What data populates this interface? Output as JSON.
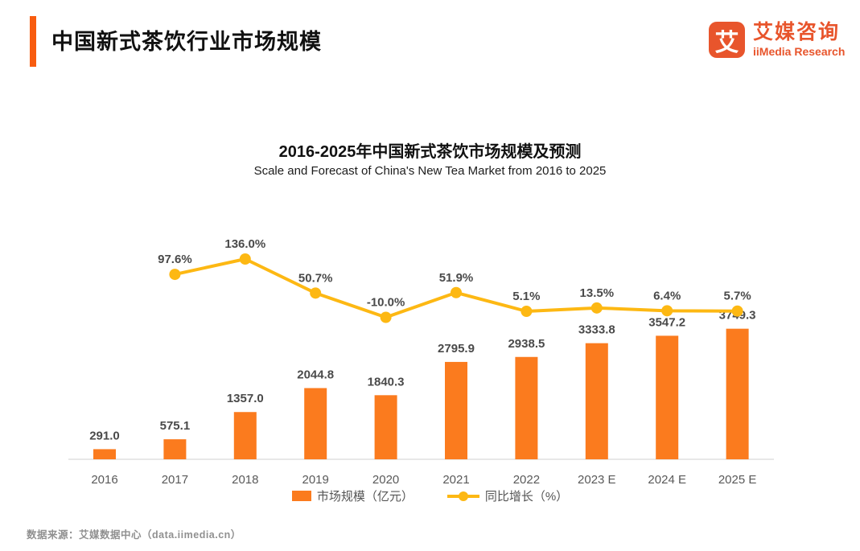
{
  "header": {
    "title": "中国新式茶饮行业市场规模"
  },
  "logo": {
    "glyph": "艾",
    "name_cn": "艾媒咨询",
    "name_en": "iiMedia Research"
  },
  "chart": {
    "title": "2016-2025年中国新式茶饮市场规模及预测",
    "subtitle": "Scale and Forecast of China's New Tea Market from 2016 to 2025"
  },
  "chart_data": {
    "type": "bar+line combo",
    "categories": [
      "2016",
      "2017",
      "2018",
      "2019",
      "2020",
      "2021",
      "2022",
      "2023 E",
      "2024 E",
      "2025 E"
    ],
    "series": [
      {
        "name": "市场规模（亿元）",
        "type": "bar",
        "color": "#FB7B1E",
        "values": [
          291.0,
          575.1,
          1357.0,
          2044.8,
          1840.3,
          2795.9,
          2938.5,
          3333.8,
          3547.2,
          3749.3
        ]
      },
      {
        "name": "同比增长（%）",
        "type": "line",
        "color": "#FDB813",
        "values": [
          null,
          97.6,
          136.0,
          50.7,
          -10.0,
          51.9,
          5.1,
          13.5,
          6.4,
          5.7
        ]
      }
    ],
    "bar_labels": [
      "291.0",
      "575.1",
      "1357.0",
      "2044.8",
      "1840.3",
      "2795.9",
      "2938.5",
      "3333.8",
      "3547.2",
      "3749.3"
    ],
    "growth_labels": [
      null,
      "97.6%",
      "136.0%",
      "50.7%",
      "-10.0%",
      "51.9%",
      "5.1%",
      "13.5%",
      "6.4%",
      "5.7%"
    ],
    "title": "2016-2025年中国新式茶饮市场规模及预测",
    "xlabel": "",
    "ylabel": "",
    "y_axis_visible": false,
    "grid": false,
    "legend_position": "bottom",
    "bar_axis_range": [
      0,
      4000
    ],
    "line_axis_range_pct": [
      -10,
      150
    ]
  },
  "legend": {
    "items": [
      {
        "label": "市场规模（亿元）",
        "marker": "bar"
      },
      {
        "label": "同比增长（%）",
        "marker": "line"
      }
    ]
  },
  "colors": {
    "accent_bar": "#F85C0F",
    "logo": "#E8552C",
    "bar": "#FB7B1E",
    "line": "#FDB813",
    "axis_line": "#E8E8E8"
  },
  "footer": {
    "source": "数据来源：艾媒数据中心（data.iimedia.cn）"
  }
}
